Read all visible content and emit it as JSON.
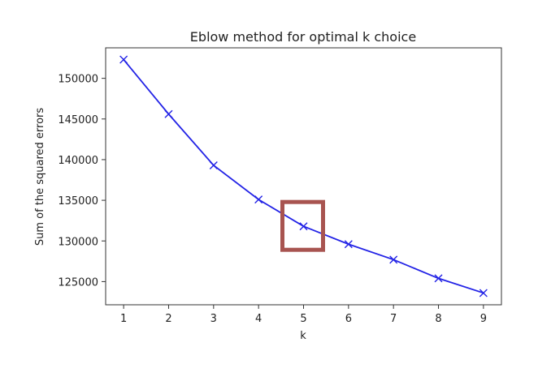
{
  "chart_data": {
    "type": "line",
    "title": "Eblow method for optimal k choice",
    "xlabel": "k",
    "ylabel": "Sum of the squared errors",
    "x": [
      1,
      2,
      3,
      4,
      5,
      6,
      7,
      8,
      9
    ],
    "series": [
      {
        "values": [
          152300,
          145600,
          139300,
          135100,
          131800,
          129600,
          127700,
          125400,
          123600
        ],
        "color": "#2323e6",
        "marker": "x"
      }
    ],
    "xticks": [
      "1",
      "2",
      "3",
      "4",
      "5",
      "6",
      "7",
      "8",
      "9"
    ],
    "yticks": [
      "125000",
      "130000",
      "135000",
      "140000",
      "145000",
      "150000"
    ],
    "xlim": [
      0.6,
      9.4
    ],
    "ylim": [
      122150,
      153750
    ],
    "grid": false,
    "annotations": [
      {
        "type": "highlight-box",
        "target_x": 5,
        "color": "#a85450"
      }
    ]
  }
}
